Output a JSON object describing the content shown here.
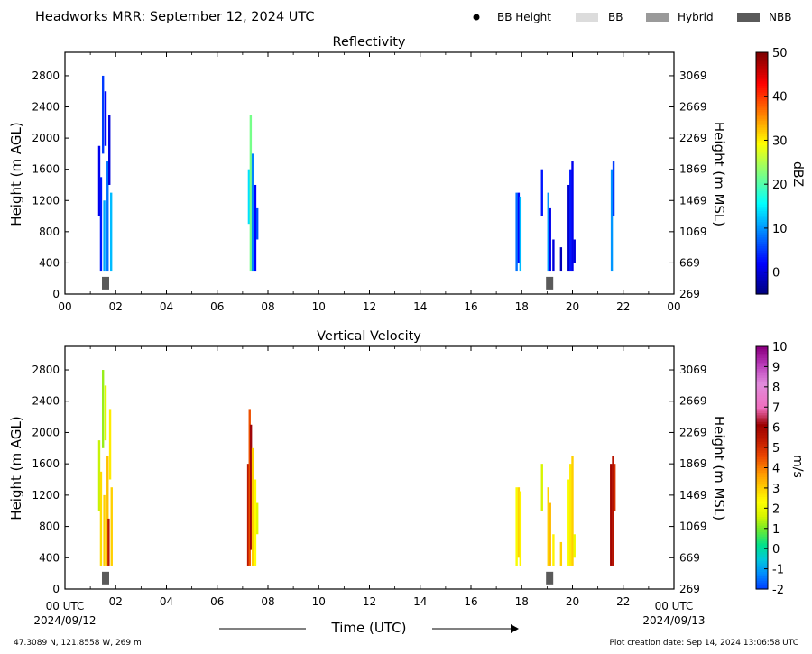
{
  "header": {
    "title": "Headworks MRR:  September 12, 2024 UTC",
    "legend": [
      {
        "label": "BB Height",
        "swatch": "dot",
        "color": "#000000"
      },
      {
        "label": "BB",
        "swatch": "rect",
        "color": "#dcdcdc"
      },
      {
        "label": "Hybrid",
        "swatch": "rect",
        "color": "#9a9a9a"
      },
      {
        "label": "NBB",
        "swatch": "rect",
        "color": "#5a5a5a"
      }
    ]
  },
  "footer": {
    "location": "47.3089 N, 121.8558 W, 269 m",
    "creation": "Plot creation date: Sep 14, 2024 13:06:58 UTC",
    "xaxis_title": "Time (UTC)",
    "start_date": "2024/09/12",
    "end_date": "2024/09/13",
    "start_tick": "00 UTC",
    "end_tick": "00 UTC"
  },
  "chart_data": [
    {
      "type": "heatmap",
      "title": "Reflectivity",
      "ylabel": "Height (m AGL)",
      "y2label": "Height (m MSL)",
      "xlim": [
        0,
        24
      ],
      "ylim": [
        0,
        3100
      ],
      "x_ticks": [
        "00",
        "02",
        "04",
        "06",
        "08",
        "10",
        "12",
        "14",
        "16",
        "18",
        "20",
        "22",
        "00"
      ],
      "y_ticks": [
        0,
        400,
        800,
        1200,
        1600,
        2000,
        2400,
        2800
      ],
      "y2_ticks": [
        "269",
        "669",
        "1069",
        "1469",
        "1869",
        "2269",
        "2669",
        "3069"
      ],
      "colorbar": {
        "label": "dBZ",
        "min": -5,
        "max": 50,
        "ticks": [
          0,
          10,
          20,
          30,
          40,
          50
        ],
        "colormap": "jet"
      },
      "bb_markers": [
        {
          "time": 1.6,
          "type": "NBB",
          "height": 140
        },
        {
          "time": 19.1,
          "type": "NBB",
          "height": 140
        }
      ],
      "echoes": [
        {
          "time": 1.35,
          "bottom": 1000,
          "top": 1900,
          "value": 1
        },
        {
          "time": 1.42,
          "bottom": 300,
          "top": 1500,
          "value": 3
        },
        {
          "time": 1.5,
          "bottom": 1800,
          "top": 2800,
          "value": 5
        },
        {
          "time": 1.55,
          "bottom": 300,
          "top": 1200,
          "value": 11
        },
        {
          "time": 1.6,
          "bottom": 1900,
          "top": 2600,
          "value": 2
        },
        {
          "time": 1.68,
          "bottom": 300,
          "top": 1700,
          "value": 8
        },
        {
          "time": 1.75,
          "bottom": 1400,
          "top": 2300,
          "value": 0
        },
        {
          "time": 1.82,
          "bottom": 300,
          "top": 1300,
          "value": 12
        },
        {
          "time": 7.25,
          "bottom": 900,
          "top": 1600,
          "value": 14
        },
        {
          "time": 7.32,
          "bottom": 300,
          "top": 2300,
          "value": 22
        },
        {
          "time": 7.4,
          "bottom": 300,
          "top": 1800,
          "value": 9
        },
        {
          "time": 7.5,
          "bottom": 300,
          "top": 1400,
          "value": 2
        },
        {
          "time": 7.58,
          "bottom": 700,
          "top": 1100,
          "value": 6
        },
        {
          "time": 17.8,
          "bottom": 300,
          "top": 1300,
          "value": 8
        },
        {
          "time": 17.88,
          "bottom": 400,
          "top": 1300,
          "value": 2
        },
        {
          "time": 17.95,
          "bottom": 300,
          "top": 1250,
          "value": 12
        },
        {
          "time": 18.8,
          "bottom": 1000,
          "top": 1600,
          "value": 3
        },
        {
          "time": 19.05,
          "bottom": 300,
          "top": 1300,
          "value": 10
        },
        {
          "time": 19.12,
          "bottom": 300,
          "top": 1100,
          "value": 1
        },
        {
          "time": 19.25,
          "bottom": 300,
          "top": 700,
          "value": 0
        },
        {
          "time": 19.55,
          "bottom": 300,
          "top": 600,
          "value": -2
        },
        {
          "time": 19.85,
          "bottom": 300,
          "top": 1400,
          "value": -1
        },
        {
          "time": 19.92,
          "bottom": 300,
          "top": 1600,
          "value": 3
        },
        {
          "time": 20.0,
          "bottom": 300,
          "top": 1700,
          "value": 1
        },
        {
          "time": 20.08,
          "bottom": 400,
          "top": 700,
          "value": 0
        },
        {
          "time": 21.55,
          "bottom": 300,
          "top": 1600,
          "value": 10
        },
        {
          "time": 21.62,
          "bottom": 1000,
          "top": 1700,
          "value": 5
        }
      ]
    },
    {
      "type": "heatmap",
      "title": "Vertical Velocity",
      "ylabel": "Height (m AGL)",
      "y2label": "Height (m MSL)",
      "xlim": [
        0,
        24
      ],
      "ylim": [
        0,
        3100
      ],
      "x_ticks": [
        "",
        "02",
        "04",
        "06",
        "08",
        "10",
        "12",
        "14",
        "16",
        "18",
        "20",
        "22",
        ""
      ],
      "y_ticks": [
        0,
        400,
        800,
        1200,
        1600,
        2000,
        2400,
        2800
      ],
      "y2_ticks": [
        "269",
        "669",
        "1069",
        "1469",
        "1869",
        "2269",
        "2669",
        "3069"
      ],
      "colorbar": {
        "label": "m/s",
        "min": -2,
        "max": 10,
        "ticks": [
          -2,
          -1,
          0,
          1,
          2,
          3,
          4,
          5,
          6,
          7,
          8,
          9,
          10
        ],
        "colormap": "velocity"
      },
      "bb_markers": [
        {
          "time": 1.6,
          "type": "NBB",
          "height": 140
        },
        {
          "time": 19.1,
          "type": "NBB",
          "height": 140
        }
      ],
      "echoes": [
        {
          "time": 1.35,
          "bottom": 1000,
          "top": 1900,
          "value": 1.5
        },
        {
          "time": 1.42,
          "bottom": 300,
          "top": 1500,
          "value": 2.8
        },
        {
          "time": 1.5,
          "bottom": 1800,
          "top": 2800,
          "value": 1.2
        },
        {
          "time": 1.55,
          "bottom": 300,
          "top": 1200,
          "value": 3
        },
        {
          "time": 1.6,
          "bottom": 1900,
          "top": 2600,
          "value": 1.8
        },
        {
          "time": 1.68,
          "bottom": 300,
          "top": 1700,
          "value": 3.2
        },
        {
          "time": 1.72,
          "bottom": 300,
          "top": 900,
          "value": 5.5
        },
        {
          "time": 1.78,
          "bottom": 1400,
          "top": 2300,
          "value": 2.6
        },
        {
          "time": 1.84,
          "bottom": 300,
          "top": 1300,
          "value": 3
        },
        {
          "time": 7.22,
          "bottom": 300,
          "top": 1600,
          "value": 5.5
        },
        {
          "time": 7.28,
          "bottom": 300,
          "top": 2300,
          "value": 4.5
        },
        {
          "time": 7.33,
          "bottom": 500,
          "top": 2100,
          "value": 6.2
        },
        {
          "time": 7.4,
          "bottom": 300,
          "top": 1800,
          "value": 3
        },
        {
          "time": 7.5,
          "bottom": 300,
          "top": 1400,
          "value": 2.3
        },
        {
          "time": 7.58,
          "bottom": 700,
          "top": 1100,
          "value": 1.8
        },
        {
          "time": 17.8,
          "bottom": 300,
          "top": 1300,
          "value": 2.2
        },
        {
          "time": 17.88,
          "bottom": 400,
          "top": 1300,
          "value": 3
        },
        {
          "time": 17.95,
          "bottom": 300,
          "top": 1250,
          "value": 2.5
        },
        {
          "time": 18.8,
          "bottom": 1000,
          "top": 1600,
          "value": 1.6
        },
        {
          "time": 19.05,
          "bottom": 300,
          "top": 1300,
          "value": 3
        },
        {
          "time": 19.12,
          "bottom": 300,
          "top": 1100,
          "value": 3.3
        },
        {
          "time": 19.25,
          "bottom": 300,
          "top": 700,
          "value": 2.5
        },
        {
          "time": 19.55,
          "bottom": 300,
          "top": 600,
          "value": 3
        },
        {
          "time": 19.85,
          "bottom": 300,
          "top": 1400,
          "value": 2.2
        },
        {
          "time": 19.92,
          "bottom": 300,
          "top": 1600,
          "value": 2.6
        },
        {
          "time": 20.0,
          "bottom": 300,
          "top": 1700,
          "value": 3
        },
        {
          "time": 20.08,
          "bottom": 400,
          "top": 700,
          "value": 2
        },
        {
          "time": 21.52,
          "bottom": 300,
          "top": 1600,
          "value": 6
        },
        {
          "time": 21.6,
          "bottom": 300,
          "top": 1700,
          "value": 5.6
        },
        {
          "time": 21.66,
          "bottom": 1000,
          "top": 1600,
          "value": 5
        }
      ]
    }
  ]
}
